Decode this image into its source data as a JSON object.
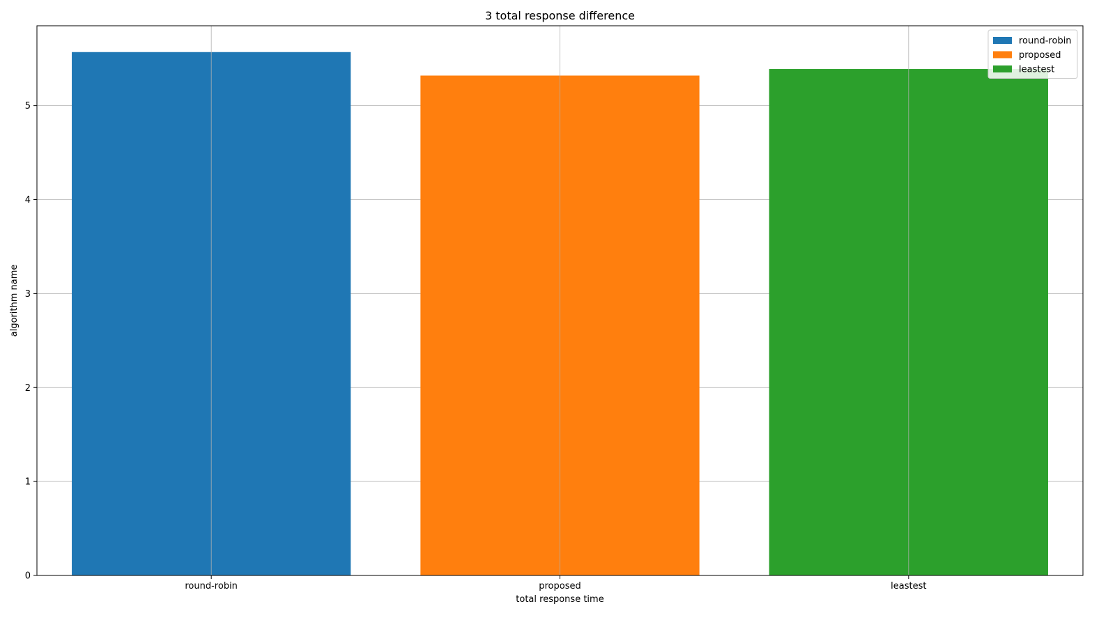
{
  "chart_data": {
    "type": "bar",
    "title": "3 total response difference",
    "xlabel": "total response time",
    "ylabel": "algorithm name",
    "categories": [
      "round-robin",
      "proposed",
      "leastest"
    ],
    "series": [
      {
        "name": "round-robin",
        "values": [
          5.57,
          null,
          null
        ],
        "color": "#1f77b4"
      },
      {
        "name": "proposed",
        "values": [
          null,
          5.32,
          null
        ],
        "color": "#ff7f0e"
      },
      {
        "name": "leastest",
        "values": [
          null,
          null,
          5.39
        ],
        "color": "#2ca02c"
      }
    ],
    "ylim": [
      0,
      5.85
    ],
    "yticks": [
      0,
      1,
      2,
      3,
      4,
      5
    ],
    "grid": true,
    "legend_position": "top-right"
  }
}
